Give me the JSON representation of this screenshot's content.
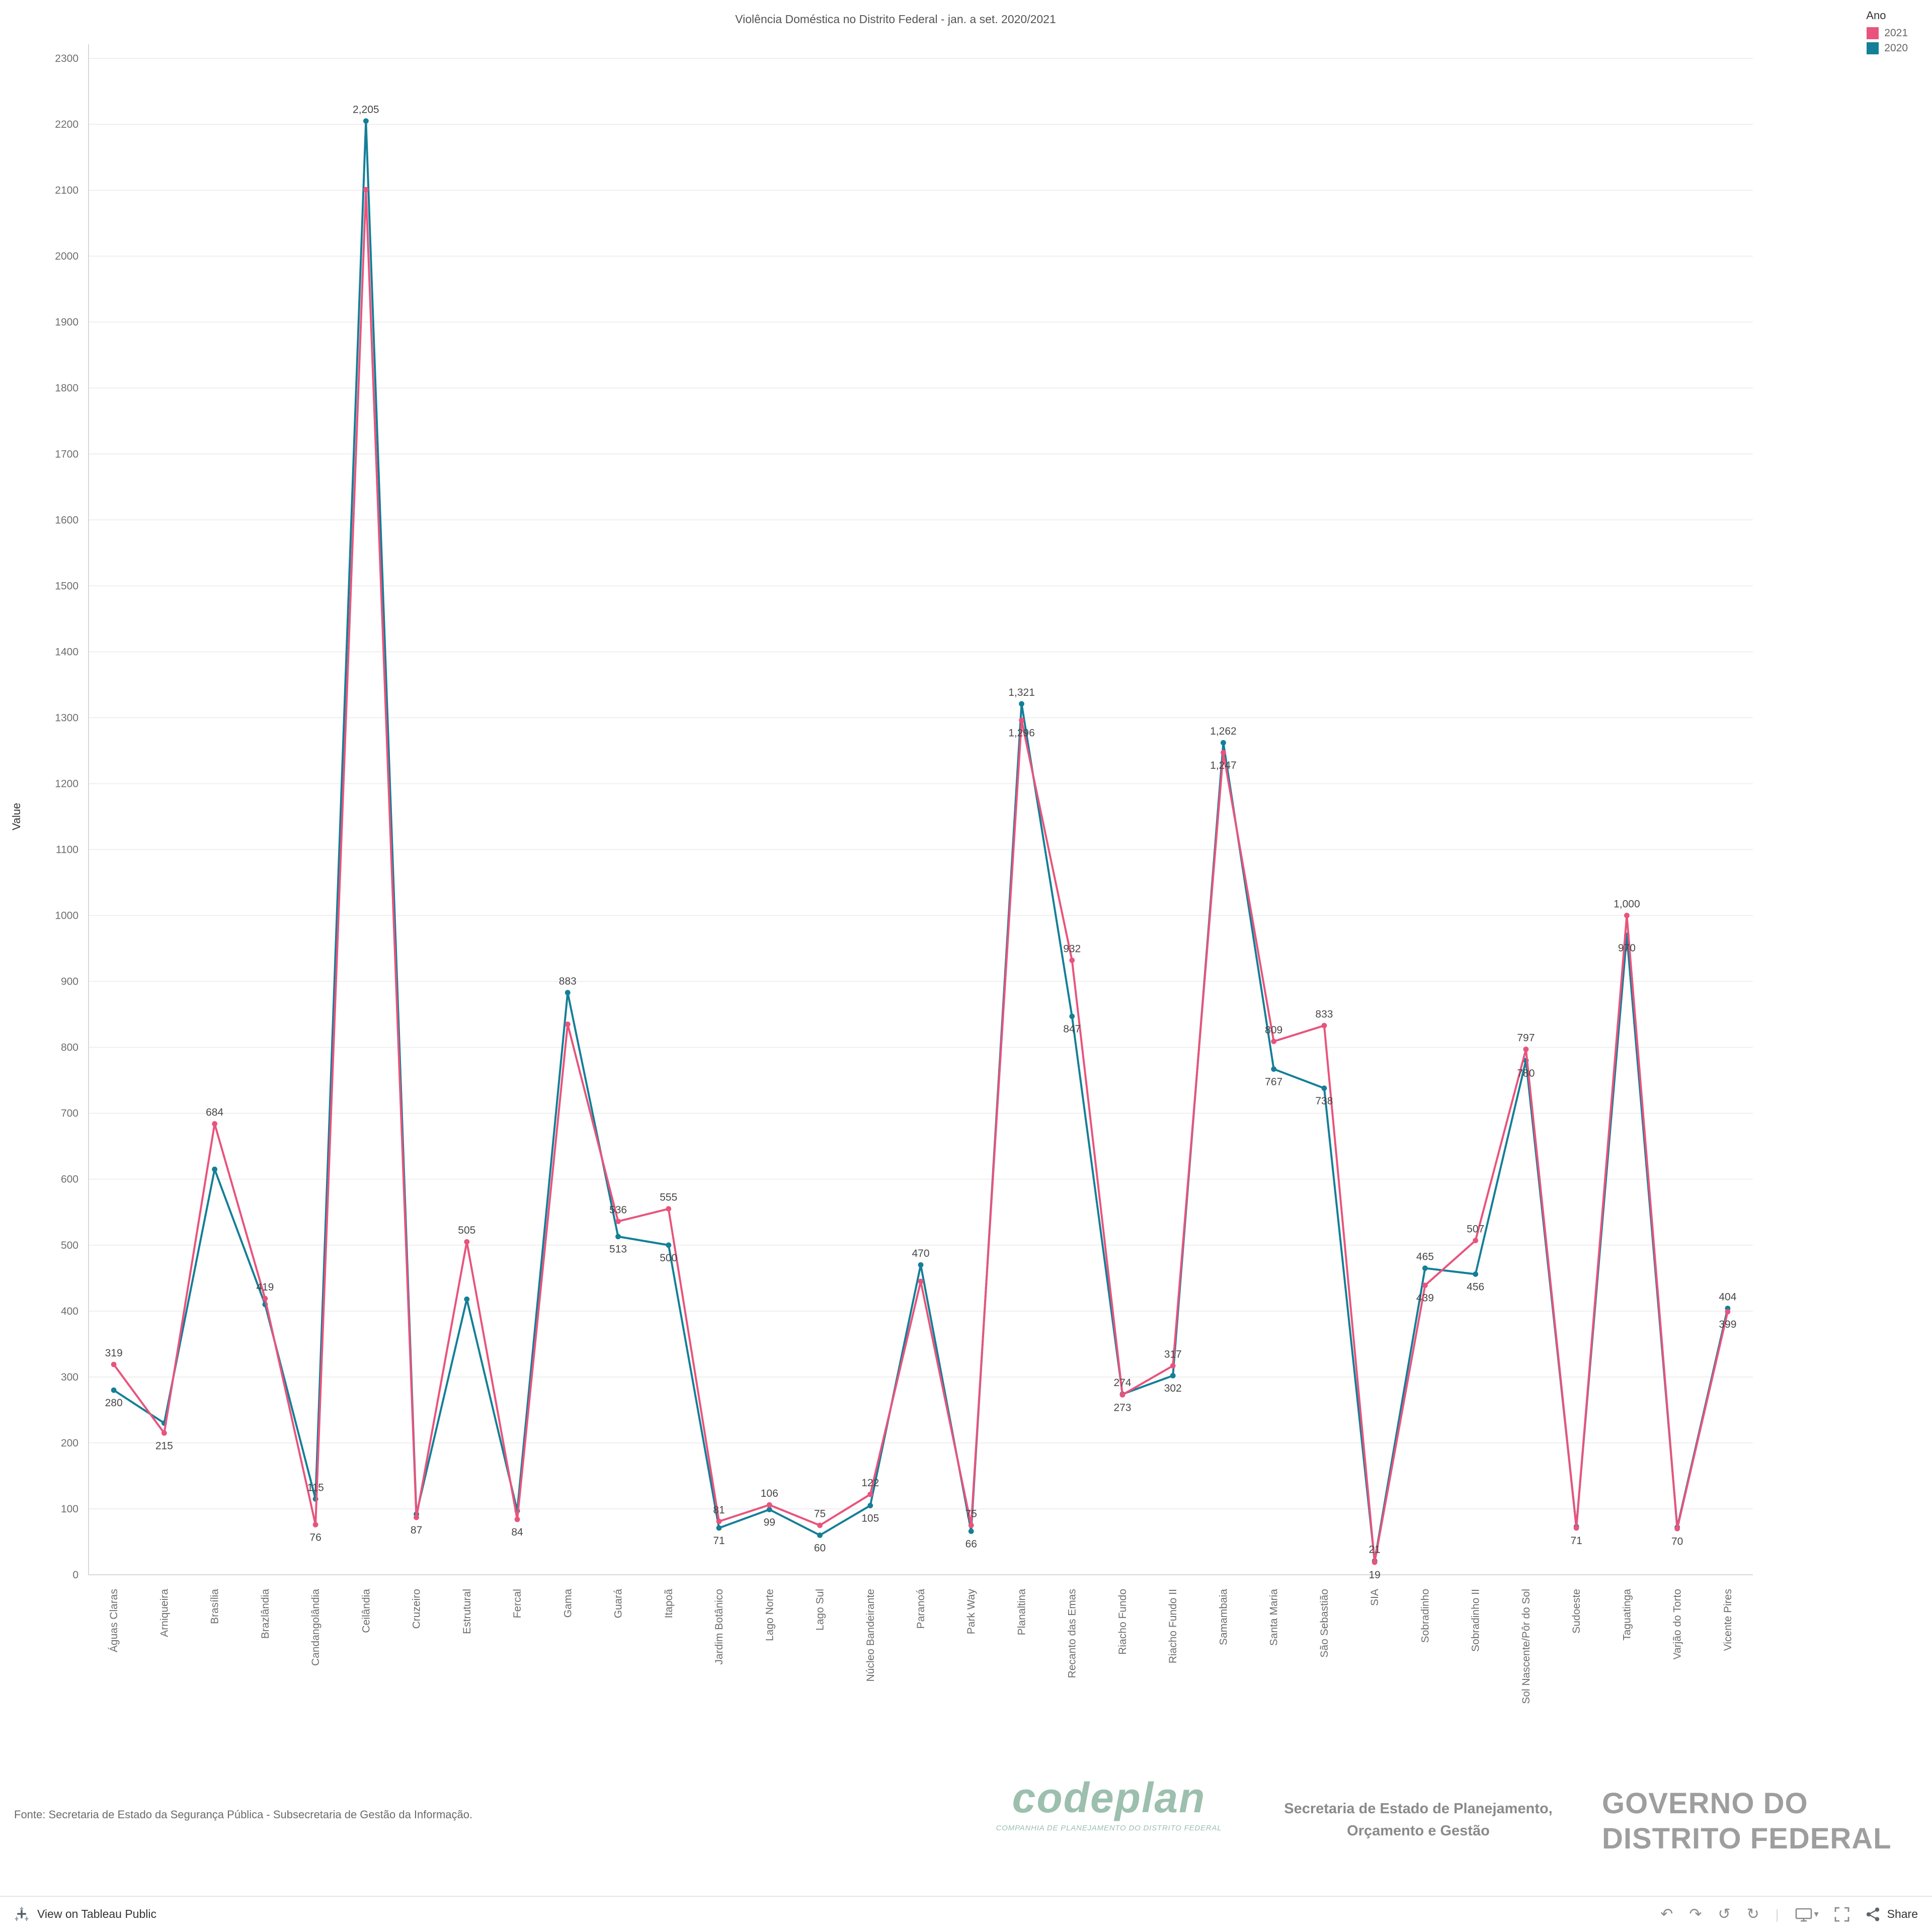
{
  "page": {
    "title": "Violência Doméstica no Distrito Federal - jan. a set.  2020/2021"
  },
  "legend": {
    "title": "Ano",
    "items": [
      {
        "label": "2021",
        "color": "#e8547d"
      },
      {
        "label": "2020",
        "color": "#147f97"
      }
    ]
  },
  "chart_data": {
    "type": "line",
    "title": "Violência Doméstica no Distrito Federal - jan. a set.  2020/2021",
    "xlabel": "",
    "ylabel": "Value",
    "ylim": [
      0,
      2300
    ],
    "ytick_step": 100,
    "grid": true,
    "legend_position": "top-right",
    "categories": [
      "Águas Claras",
      "Arniqueira",
      "Brasília",
      "Brazlândia",
      "Candangolândia",
      "Ceilândia",
      "Cruzeiro",
      "Estrutural",
      "Fercal",
      "Gama",
      "Guará",
      "Itapoã",
      "Jardim Botânico",
      "Lago Norte",
      "Lago Sul",
      "Núcleo Bandeirante",
      "Paranoá",
      "Park Way",
      "Planaltina",
      "Recanto das Emas",
      "Riacho Fundo",
      "Riacho Fundo II",
      "Samambaia",
      "Santa Maria",
      "São Sebastião",
      "SIA",
      "Sobradinho",
      "Sobradinho II",
      "Sol Nascente/Pôr do Sol",
      "Sudoeste",
      "Taguatinga",
      "Varjão do Torto",
      "Vicente Pires"
    ],
    "series": [
      {
        "name": "2021",
        "color": "#e8547d",
        "values": [
          319,
          215,
          684,
          419,
          76,
          2101,
          87,
          505,
          84,
          835,
          536,
          555,
          81,
          106,
          75,
          122,
          445,
          75,
          1296,
          932,
          273,
          317,
          1247,
          809,
          833,
          19,
          439,
          507,
          797,
          71,
          1000,
          70,
          399
        ],
        "labels": [
          "319",
          "215",
          "684",
          "419",
          "76",
          "",
          "87",
          "505",
          "84",
          "",
          "536",
          "555",
          "81",
          "106",
          "75",
          "122",
          "",
          "75",
          "1,296",
          "932",
          "273",
          "317",
          "1,247",
          "809",
          "833",
          "19",
          "439",
          "507",
          "797",
          "71",
          "1,000",
          "70",
          "399"
        ]
      },
      {
        "name": "2020",
        "color": "#147f97",
        "values": [
          280,
          230,
          615,
          410,
          115,
          2205,
          92,
          418,
          97,
          883,
          513,
          500,
          71,
          99,
          60,
          105,
          470,
          66,
          1321,
          847,
          274,
          302,
          1262,
          767,
          738,
          21,
          465,
          456,
          780,
          73,
          970,
          72,
          404
        ],
        "labels": [
          "280",
          "",
          "",
          "",
          "115",
          "2,205",
          "",
          "",
          "",
          "883",
          "513",
          "500",
          "71",
          "99",
          "60",
          "105",
          "470",
          "66",
          "1,321",
          "847",
          "274",
          "302",
          "1,262",
          "767",
          "738",
          "21",
          "465",
          "456",
          "780",
          "",
          "970",
          "",
          "404"
        ]
      }
    ]
  },
  "footer": {
    "source": "Fonte: Secretaria de Estado da Segurança Pública - Subsecretaria de Gestão da Informação.",
    "codeplan_name": "codeplan",
    "codeplan_tagline": "COMPANHIA DE PLANEJAMENTO DO DISTRITO FEDERAL",
    "secretaria_line1": "Secretaria de Estado de Planejamento,",
    "secretaria_line2": "Orçamento e Gestão",
    "governo_line1": "GOVERNO DO",
    "governo_line2": "DISTRITO FEDERAL"
  },
  "toolbar": {
    "view_label": "View on Tableau Public",
    "share_label": "Share"
  }
}
